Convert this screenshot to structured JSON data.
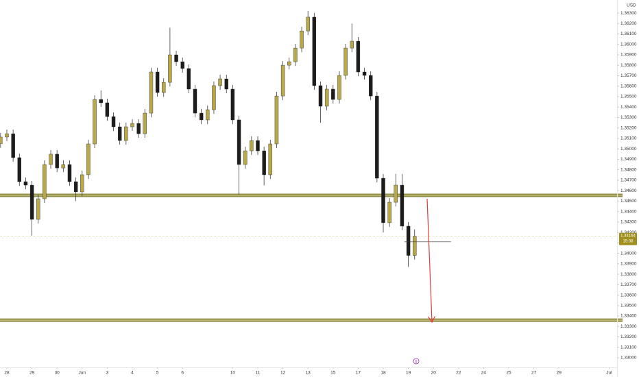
{
  "chart_data": {
    "type": "candlestick",
    "currency": "USD",
    "x": [
      -0.25,
      0,
      0.25,
      0.5,
      0.75,
      1,
      1.25,
      1.5,
      1.75,
      2,
      2.25,
      2.5,
      2.75,
      3,
      3.25,
      3.5,
      3.75,
      4,
      4.25,
      4.5,
      4.75,
      5,
      5.25,
      5.5,
      5.75,
      6,
      6.25,
      6.5,
      6.75,
      7,
      7.25,
      7.5,
      7.75,
      8,
      8.25,
      8.5,
      8.75,
      9,
      9.25,
      9.5,
      9.75,
      10,
      10.25,
      10.5,
      10.75,
      11,
      11.25,
      11.5,
      11.75,
      12,
      12.25,
      12.5,
      12.75,
      13,
      13.25,
      13.5,
      13.75,
      14,
      14.25,
      14.5,
      14.75,
      15,
      15.25,
      15.5,
      15.75,
      16,
      16.25
    ],
    "open": [
      1.3505,
      1.35113,
      1.35145,
      1.34916,
      1.34686,
      1.34653,
      1.34325,
      1.34522,
      1.3485,
      1.34949,
      1.34817,
      1.3485,
      1.34686,
      1.34588,
      1.34752,
      1.35047,
      1.35473,
      1.35441,
      1.35309,
      1.35211,
      1.3508,
      1.35211,
      1.35244,
      1.35145,
      1.35342,
      1.35736,
      1.35539,
      1.35637,
      1.359,
      1.35834,
      1.35769,
      1.35572,
      1.35342,
      1.35277,
      1.35375,
      1.35605,
      1.3567,
      1.35572,
      1.35277,
      1.3485,
      1.34981,
      1.3508,
      1.34981,
      1.34752,
      1.35047,
      1.35506,
      1.35801,
      1.35834,
      1.35965,
      1.36129,
      1.36261,
      1.35605,
      1.35408,
      1.35572,
      1.35473,
      1.35703,
      1.35965,
      1.36031,
      1.35736,
      1.35703,
      1.35506,
      1.34719,
      1.34293,
      1.34489,
      1.34653,
      1.3426,
      1.3398
    ],
    "high": [
      1.35153,
      1.35185,
      1.35185,
      1.34956,
      1.34726,
      1.34693,
      1.34562,
      1.3489,
      1.34989,
      1.34989,
      1.3489,
      1.3489,
      1.34726,
      1.34792,
      1.35087,
      1.35513,
      1.3556,
      1.35481,
      1.35349,
      1.35251,
      1.35251,
      1.35284,
      1.35284,
      1.35382,
      1.35776,
      1.35776,
      1.35677,
      1.3616,
      1.3594,
      1.35874,
      1.35809,
      1.35612,
      1.35382,
      1.35415,
      1.35645,
      1.3571,
      1.3571,
      1.35612,
      1.35317,
      1.35021,
      1.3512,
      1.3512,
      1.35021,
      1.35087,
      1.35546,
      1.35841,
      1.35874,
      1.36005,
      1.36169,
      1.3632,
      1.36301,
      1.35645,
      1.35612,
      1.35612,
      1.35743,
      1.36005,
      1.362,
      1.36071,
      1.35776,
      1.35743,
      1.35546,
      1.34759,
      1.34529,
      1.3476,
      1.3476,
      1.343,
      1.3423
    ],
    "low": [
      1.3501,
      1.35073,
      1.34876,
      1.34646,
      1.34613,
      1.3417,
      1.34285,
      1.34482,
      1.3481,
      1.34777,
      1.34777,
      1.34646,
      1.345,
      1.34548,
      1.34712,
      1.35007,
      1.35401,
      1.35269,
      1.35171,
      1.3504,
      1.3504,
      1.35171,
      1.35105,
      1.35105,
      1.35302,
      1.35499,
      1.35499,
      1.35597,
      1.35794,
      1.35729,
      1.35532,
      1.35302,
      1.35237,
      1.35237,
      1.35335,
      1.35565,
      1.35532,
      1.35237,
      1.3456,
      1.3481,
      1.34941,
      1.34941,
      1.3465,
      1.34712,
      1.35007,
      1.35466,
      1.35761,
      1.35794,
      1.35925,
      1.36089,
      1.35565,
      1.3525,
      1.35368,
      1.35433,
      1.35433,
      1.35663,
      1.35925,
      1.35696,
      1.35663,
      1.35466,
      1.34679,
      1.342,
      1.34253,
      1.34449,
      1.3422,
      1.3387,
      1.3394
    ],
    "close": [
      1.35113,
      1.35145,
      1.34916,
      1.34686,
      1.34653,
      1.34325,
      1.34522,
      1.3485,
      1.34949,
      1.34817,
      1.3485,
      1.34686,
      1.34588,
      1.34752,
      1.35047,
      1.35473,
      1.35441,
      1.35309,
      1.35211,
      1.3508,
      1.35211,
      1.35244,
      1.35145,
      1.35342,
      1.35736,
      1.35539,
      1.35637,
      1.359,
      1.35834,
      1.35769,
      1.35572,
      1.35342,
      1.35277,
      1.35375,
      1.35605,
      1.3567,
      1.35572,
      1.35277,
      1.3485,
      1.34981,
      1.3508,
      1.34981,
      1.34752,
      1.35047,
      1.35506,
      1.35801,
      1.35834,
      1.35965,
      1.36129,
      1.36261,
      1.35605,
      1.35408,
      1.35572,
      1.35473,
      1.35703,
      1.35965,
      1.36031,
      1.35736,
      1.35703,
      1.35506,
      1.34719,
      1.34293,
      1.34489,
      1.34653,
      1.3426,
      1.3398,
      1.34164
    ],
    "up_color": "#b8a84a",
    "down_color": "#1c1c1c",
    "levels": [
      1.34555,
      1.3336
    ],
    "level_color": "#7d7a2c",
    "marker_line": 1.3411,
    "price_label": {
      "value": 1.34164,
      "label": "1.34164",
      "countdown": "15:08"
    },
    "event_marker": "6",
    "xlim": [
      -0.273,
      24.317
    ],
    "xticks": [
      {
        "value": 0,
        "label": "28"
      },
      {
        "value": 1,
        "label": "29"
      },
      {
        "value": 2,
        "label": "30"
      },
      {
        "value": 3,
        "label": "Jun"
      },
      {
        "value": 4,
        "label": "3"
      },
      {
        "value": 5,
        "label": "4"
      },
      {
        "value": 6,
        "label": "5"
      },
      {
        "value": 7,
        "label": "6"
      },
      {
        "value": 9,
        "label": "10"
      },
      {
        "value": 10,
        "label": "11"
      },
      {
        "value": 11,
        "label": "12"
      },
      {
        "value": 12,
        "label": "13"
      },
      {
        "value": 13,
        "label": "15"
      },
      {
        "value": 14,
        "label": "17"
      },
      {
        "value": 15,
        "label": "18"
      },
      {
        "value": 16,
        "label": "19"
      },
      {
        "value": 17,
        "label": "20"
      },
      {
        "value": 18,
        "label": "22"
      },
      {
        "value": 19,
        "label": "24"
      },
      {
        "value": 20,
        "label": "25"
      },
      {
        "value": 21,
        "label": "27"
      },
      {
        "value": 22,
        "label": "29"
      },
      {
        "value": 24,
        "label": "Jul"
      }
    ],
    "ylim": [
      1.32908,
      1.36425
    ],
    "yticks": [
      {
        "value": 1.33,
        "label": "1.33000"
      },
      {
        "value": 1.331,
        "label": "1.33100"
      },
      {
        "value": 1.332,
        "label": "1.33200"
      },
      {
        "value": 1.333,
        "label": "1.33300"
      },
      {
        "value": 1.334,
        "label": "1.33400"
      },
      {
        "value": 1.335,
        "label": "1.33500"
      },
      {
        "value": 1.336,
        "label": "1.33600"
      },
      {
        "value": 1.337,
        "label": "1.33700"
      },
      {
        "value": 1.338,
        "label": "1.33800"
      },
      {
        "value": 1.339,
        "label": "1.33900"
      },
      {
        "value": 1.34,
        "label": "1.34000"
      },
      {
        "value": 1.341,
        "label": "1.34100"
      },
      {
        "value": 1.342,
        "label": "1.34200"
      },
      {
        "value": 1.343,
        "label": "1.34300"
      },
      {
        "value": 1.344,
        "label": "1.34400"
      },
      {
        "value": 1.345,
        "label": "1.34500"
      },
      {
        "value": 1.346,
        "label": "1.34600"
      },
      {
        "value": 1.347,
        "label": "1.34700"
      },
      {
        "value": 1.348,
        "label": "1.34800"
      },
      {
        "value": 1.349,
        "label": "1.34900"
      },
      {
        "value": 1.35,
        "label": "1.35000"
      },
      {
        "value": 1.351,
        "label": "1.35100"
      },
      {
        "value": 1.352,
        "label": "1.35200"
      },
      {
        "value": 1.353,
        "label": "1.35300"
      },
      {
        "value": 1.354,
        "label": "1.35400"
      },
      {
        "value": 1.355,
        "label": "1.35500"
      },
      {
        "value": 1.356,
        "label": "1.35600"
      },
      {
        "value": 1.357,
        "label": "1.35700"
      },
      {
        "value": 1.358,
        "label": "1.35800"
      },
      {
        "value": 1.359,
        "label": "1.35900"
      },
      {
        "value": 1.36,
        "label": "1.36000"
      },
      {
        "value": 1.361,
        "label": "1.36100"
      },
      {
        "value": 1.362,
        "label": "1.36200"
      },
      {
        "value": 1.363,
        "label": "1.36300"
      }
    ],
    "grid": false
  }
}
